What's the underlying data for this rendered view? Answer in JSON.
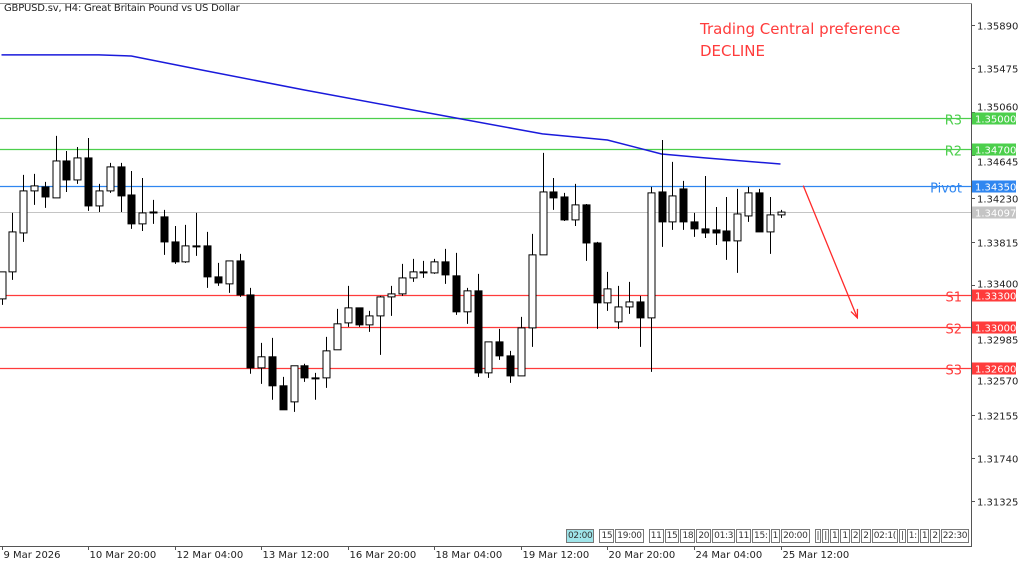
{
  "header": {
    "title": "GBPUSD.sv, H4:  Great Britain Pound vs US Dollar"
  },
  "annotation": {
    "line1": "Trading Central preference",
    "line2": "DECLINE",
    "color": "#ff3b3b"
  },
  "event_strip": [
    {
      "items": [
        {
          "label": "02:00",
          "highlight": true
        }
      ]
    },
    {
      "items": [
        {
          "label": "15"
        },
        {
          "label": "19:00"
        }
      ]
    },
    {
      "items": [
        {
          "label": "11"
        },
        {
          "label": "15"
        },
        {
          "label": "18"
        },
        {
          "label": "20"
        },
        {
          "label": "01:3"
        },
        {
          "label": "11"
        },
        {
          "label": "15:"
        },
        {
          "label": "1"
        },
        {
          "label": "20:00"
        }
      ]
    },
    {
      "items": [
        {
          "label": "|"
        },
        {
          "label": "|"
        },
        {
          "label": "1"
        },
        {
          "label": "1"
        },
        {
          "label": "2"
        },
        {
          "label": "2"
        },
        {
          "label": "02:1("
        },
        {
          "label": "|"
        },
        {
          "label": "1:"
        },
        {
          "label": "1"
        },
        {
          "label": "2"
        },
        {
          "label": "22:30"
        }
      ]
    }
  ],
  "chart_data": {
    "type": "candlestick",
    "symbol": "GBPUSD.sv",
    "timeframe": "H4",
    "ylim": [
      1.3105,
      1.3629
    ],
    "y_ticks": [
      "1.35890",
      "1.35475",
      "1.35060",
      "1.34645",
      "1.34230",
      "1.33815",
      "1.33400",
      "1.32985",
      "1.32570",
      "1.32155",
      "1.31740",
      "1.31325"
    ],
    "x_labels": [
      {
        "bar": 0,
        "label": "9 Mar 2026"
      },
      {
        "bar": 8,
        "label": "10 Mar 20:00"
      },
      {
        "bar": 16,
        "label": "12 Mar 04:00"
      },
      {
        "bar": 24,
        "label": "13 Mar 12:00"
      },
      {
        "bar": 32,
        "label": "16 Mar 20:00"
      },
      {
        "bar": 40,
        "label": "18 Mar 04:00"
      },
      {
        "bar": 48,
        "label": "19 Mar 12:00"
      },
      {
        "bar": 56,
        "label": "20 Mar 20:00"
      },
      {
        "bar": 64,
        "label": "24 Mar 04:00"
      },
      {
        "bar": 72,
        "label": "25 Mar 12:00"
      }
    ],
    "ohlc": [
      [
        1.33265,
        1.33524,
        1.33208,
        1.33524
      ],
      [
        1.33524,
        1.34089,
        1.33447,
        1.33907
      ],
      [
        1.33897,
        1.34453,
        1.33811,
        1.343
      ],
      [
        1.343,
        1.34463,
        1.34166,
        1.34348
      ],
      [
        1.34338,
        1.34386,
        1.34137,
        1.34242
      ],
      [
        1.34233,
        1.34827,
        1.34233,
        1.34587
      ],
      [
        1.34587,
        1.34683,
        1.3429,
        1.34405
      ],
      [
        1.34405,
        1.34721,
        1.34367,
        1.34616
      ],
      [
        1.34616,
        1.34807,
        1.34108,
        1.34156
      ],
      [
        1.34156,
        1.34367,
        1.34098,
        1.343
      ],
      [
        1.343,
        1.34568,
        1.34281,
        1.3453
      ],
      [
        1.3453,
        1.34568,
        1.34098,
        1.34252
      ],
      [
        1.34261,
        1.34491,
        1.33936,
        1.33984
      ],
      [
        1.33984,
        1.34424,
        1.33916,
        1.34089
      ],
      [
        1.34098,
        1.34214,
        1.33984,
        1.34098
      ],
      [
        1.34051,
        1.34118,
        1.33687,
        1.33811
      ],
      [
        1.33811,
        1.33964,
        1.33601,
        1.3362
      ],
      [
        1.3362,
        1.33974,
        1.3361,
        1.33773
      ],
      [
        1.33773,
        1.34089,
        1.33677,
        1.33773
      ],
      [
        1.33773,
        1.33907,
        1.3337,
        1.33476
      ],
      [
        1.33476,
        1.3361,
        1.3339,
        1.33418
      ],
      [
        1.33409,
        1.33629,
        1.33323,
        1.33629
      ],
      [
        1.33629,
        1.33696,
        1.33284,
        1.33303
      ],
      [
        1.33303,
        1.3337,
        1.32547,
        1.32604
      ],
      [
        1.32604,
        1.32844,
        1.32451,
        1.3271
      ],
      [
        1.3271,
        1.32891,
        1.32298,
        1.32432
      ],
      [
        1.32432,
        1.32518,
        1.32202,
        1.32202
      ],
      [
        1.32278,
        1.32624,
        1.32182,
        1.32624
      ],
      [
        1.32624,
        1.32643,
        1.3247,
        1.32508
      ],
      [
        1.32508,
        1.32556,
        1.32298,
        1.32508
      ],
      [
        1.32508,
        1.32901,
        1.32412,
        1.32767
      ],
      [
        1.32777,
        1.33169,
        1.32777,
        1.33026
      ],
      [
        1.33035,
        1.3339,
        1.32997,
        1.33179
      ],
      [
        1.33179,
        1.33179,
        1.32997,
        1.33016
      ],
      [
        1.33016,
        1.3315,
        1.32949,
        1.33102
      ],
      [
        1.33102,
        1.33294,
        1.32729,
        1.33284
      ],
      [
        1.33284,
        1.3339,
        1.33102,
        1.33313
      ],
      [
        1.33313,
        1.33601,
        1.33294,
        1.33466
      ],
      [
        1.33466,
        1.33648,
        1.33428,
        1.33524
      ],
      [
        1.33524,
        1.33629,
        1.33466,
        1.33514
      ],
      [
        1.33514,
        1.33648,
        1.33505,
        1.3362
      ],
      [
        1.3362,
        1.33744,
        1.33409,
        1.33495
      ],
      [
        1.33486,
        1.33706,
        1.33112,
        1.33141
      ],
      [
        1.33141,
        1.3337,
        1.33026,
        1.33342
      ],
      [
        1.33342,
        1.33505,
        1.32518,
        1.32556
      ],
      [
        1.32556,
        1.32853,
        1.32508,
        1.32853
      ],
      [
        1.32853,
        1.32978,
        1.32681,
        1.32719
      ],
      [
        1.32719,
        1.32767,
        1.3246,
        1.32527
      ],
      [
        1.32527,
        1.33093,
        1.32527,
        1.32987
      ],
      [
        1.32987,
        1.33888,
        1.32805,
        1.33687
      ],
      [
        1.33687,
        1.34664,
        1.33687,
        1.3429
      ],
      [
        1.3429,
        1.34424,
        1.34118,
        1.34233
      ],
      [
        1.34242,
        1.34281,
        1.34012,
        1.34022
      ],
      [
        1.34022,
        1.34367,
        1.33964,
        1.34166
      ],
      [
        1.34166,
        1.34175,
        1.33629,
        1.33801
      ],
      [
        1.33801,
        1.33811,
        1.32978,
        1.33227
      ],
      [
        1.33227,
        1.33524,
        1.3315,
        1.33361
      ],
      [
        1.33045,
        1.3339,
        1.32978,
        1.33188
      ],
      [
        1.33188,
        1.33428,
        1.33121,
        1.33236
      ],
      [
        1.33236,
        1.33294,
        1.32805,
        1.33083
      ],
      [
        1.33083,
        1.34338,
        1.32566,
        1.34281
      ],
      [
        1.3429,
        1.34788,
        1.33763,
        1.34003
      ],
      [
        1.34003,
        1.34578,
        1.33926,
        1.34252
      ],
      [
        1.34319,
        1.34396,
        1.33926,
        1.34003
      ],
      [
        1.34003,
        1.34089,
        1.33859,
        1.33936
      ],
      [
        1.33936,
        1.34443,
        1.33849,
        1.33897
      ],
      [
        1.33926,
        1.34146,
        1.33782,
        1.33897
      ],
      [
        1.33916,
        1.34242,
        1.33639,
        1.33821
      ],
      [
        1.33821,
        1.34319,
        1.33514,
        1.34079
      ],
      [
        1.3406,
        1.34338,
        1.34003,
        1.34281
      ],
      [
        1.34281,
        1.34319,
        1.33907,
        1.33907
      ],
      [
        1.33907,
        1.34242,
        1.33696,
        1.3407
      ],
      [
        1.3407,
        1.34118,
        1.34041,
        1.34097
      ]
    ],
    "moving_average": {
      "color": "#1a1adb",
      "points": [
        {
          "bar": 0,
          "price": 1.35603
        },
        {
          "bar": 9,
          "price": 1.35603
        },
        {
          "bar": 12,
          "price": 1.35593
        },
        {
          "bar": 18.5,
          "price": 1.35459
        },
        {
          "bar": 28,
          "price": 1.35267
        },
        {
          "bar": 37,
          "price": 1.35095
        },
        {
          "bar": 42,
          "price": 1.34999
        },
        {
          "bar": 50,
          "price": 1.34846
        },
        {
          "bar": 56,
          "price": 1.34788
        },
        {
          "bar": 61,
          "price": 1.34654
        },
        {
          "bar": 65,
          "price": 1.34616
        },
        {
          "bar": 72,
          "price": 1.34558
        }
      ]
    },
    "levels": [
      {
        "name": "R3",
        "value": "1.35000",
        "price": 1.35,
        "color": "#4ccf4c"
      },
      {
        "name": "R2",
        "value": "1.34700",
        "price": 1.347,
        "color": "#4ccf4c"
      },
      {
        "name": "Pivot",
        "value": "1.34350",
        "price": 1.3435,
        "color": "#2f86f0"
      },
      {
        "name": "S1",
        "value": "1.33300",
        "price": 1.333,
        "color": "#ff3b3b"
      },
      {
        "name": "S2",
        "value": "1.33000",
        "price": 1.33,
        "color": "#ff3b3b"
      },
      {
        "name": "S3",
        "value": "1.32600",
        "price": 1.326,
        "color": "#ff3b3b"
      }
    ],
    "current_price": {
      "value": "1.34097",
      "price": 1.34097,
      "color": "#c4c4c4"
    },
    "arrow": {
      "from": {
        "bar": 74.1,
        "price": 1.3435
      },
      "to": {
        "bar": 79.1,
        "price": 1.33083
      },
      "color": "#ff2a2a"
    }
  }
}
